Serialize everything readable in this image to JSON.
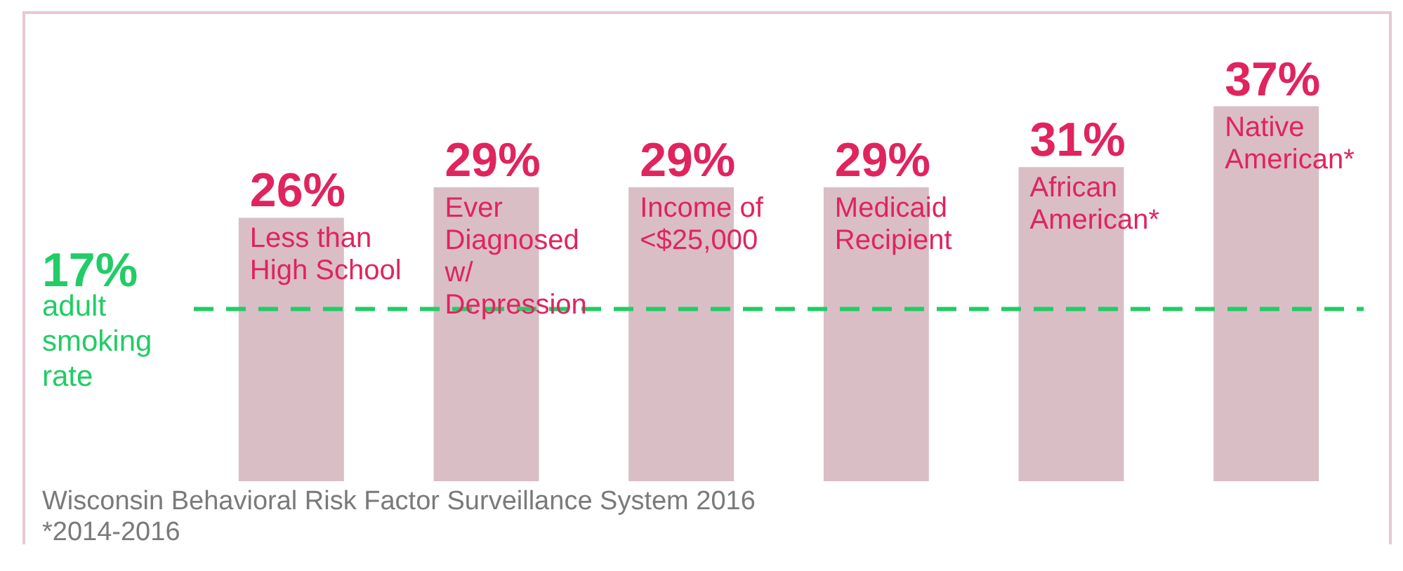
{
  "chart_data": {
    "type": "bar",
    "categories": [
      "Less than High School",
      "Ever Diagnosed w/ Depression",
      "Income of <$25,000",
      "Medicaid Recipient",
      "African American*",
      "Native American*"
    ],
    "values": [
      26,
      29,
      29,
      29,
      31,
      37
    ],
    "color": "#d9bec6",
    "data_labels": true,
    "value_labels": [
      "26%",
      "29%",
      "29%",
      "29%",
      "31%",
      "37%"
    ],
    "ref_lines": [
      {
        "axis": "y",
        "value": 17,
        "label": "17% adult smoking rate",
        "color": "#22cc66",
        "line_style": "dashed"
      }
    ],
    "annotations": [
      "Wisconsin Behavioral Risk Factor Surveillance System 2016",
      "*2014-2016"
    ],
    "legend": false
  }
}
